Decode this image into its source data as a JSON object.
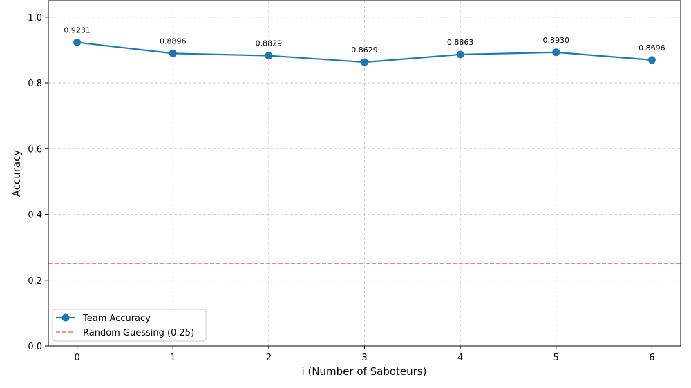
{
  "chart_data": {
    "type": "line",
    "xlabel": "i (Number of Saboteurs)",
    "ylabel": "Accuracy",
    "x": [
      0,
      1,
      2,
      3,
      4,
      5,
      6
    ],
    "xlim": [
      -0.3,
      6.3
    ],
    "ylim": [
      0,
      1.05
    ],
    "xticks": [
      "0",
      "1",
      "2",
      "3",
      "4",
      "5",
      "6"
    ],
    "yticks": [
      "0.0",
      "0.2",
      "0.4",
      "0.6",
      "0.8",
      "1.0"
    ],
    "grid": true,
    "legend_position": "lower-left",
    "series": [
      {
        "name": "Team Accuracy",
        "values": [
          0.9231,
          0.8896,
          0.8829,
          0.8629,
          0.8863,
          0.893,
          0.8696
        ],
        "data_labels": [
          "0.9231",
          "0.8896",
          "0.8829",
          "0.8629",
          "0.8863",
          "0.8930",
          "0.8696"
        ],
        "color": "#1f77b4",
        "style": "solid",
        "marker": "circle"
      }
    ],
    "reference_lines": [
      {
        "name": "Random Guessing (0.25)",
        "y": 0.25,
        "color": "#ff6b6b",
        "style": "dashed"
      }
    ]
  }
}
